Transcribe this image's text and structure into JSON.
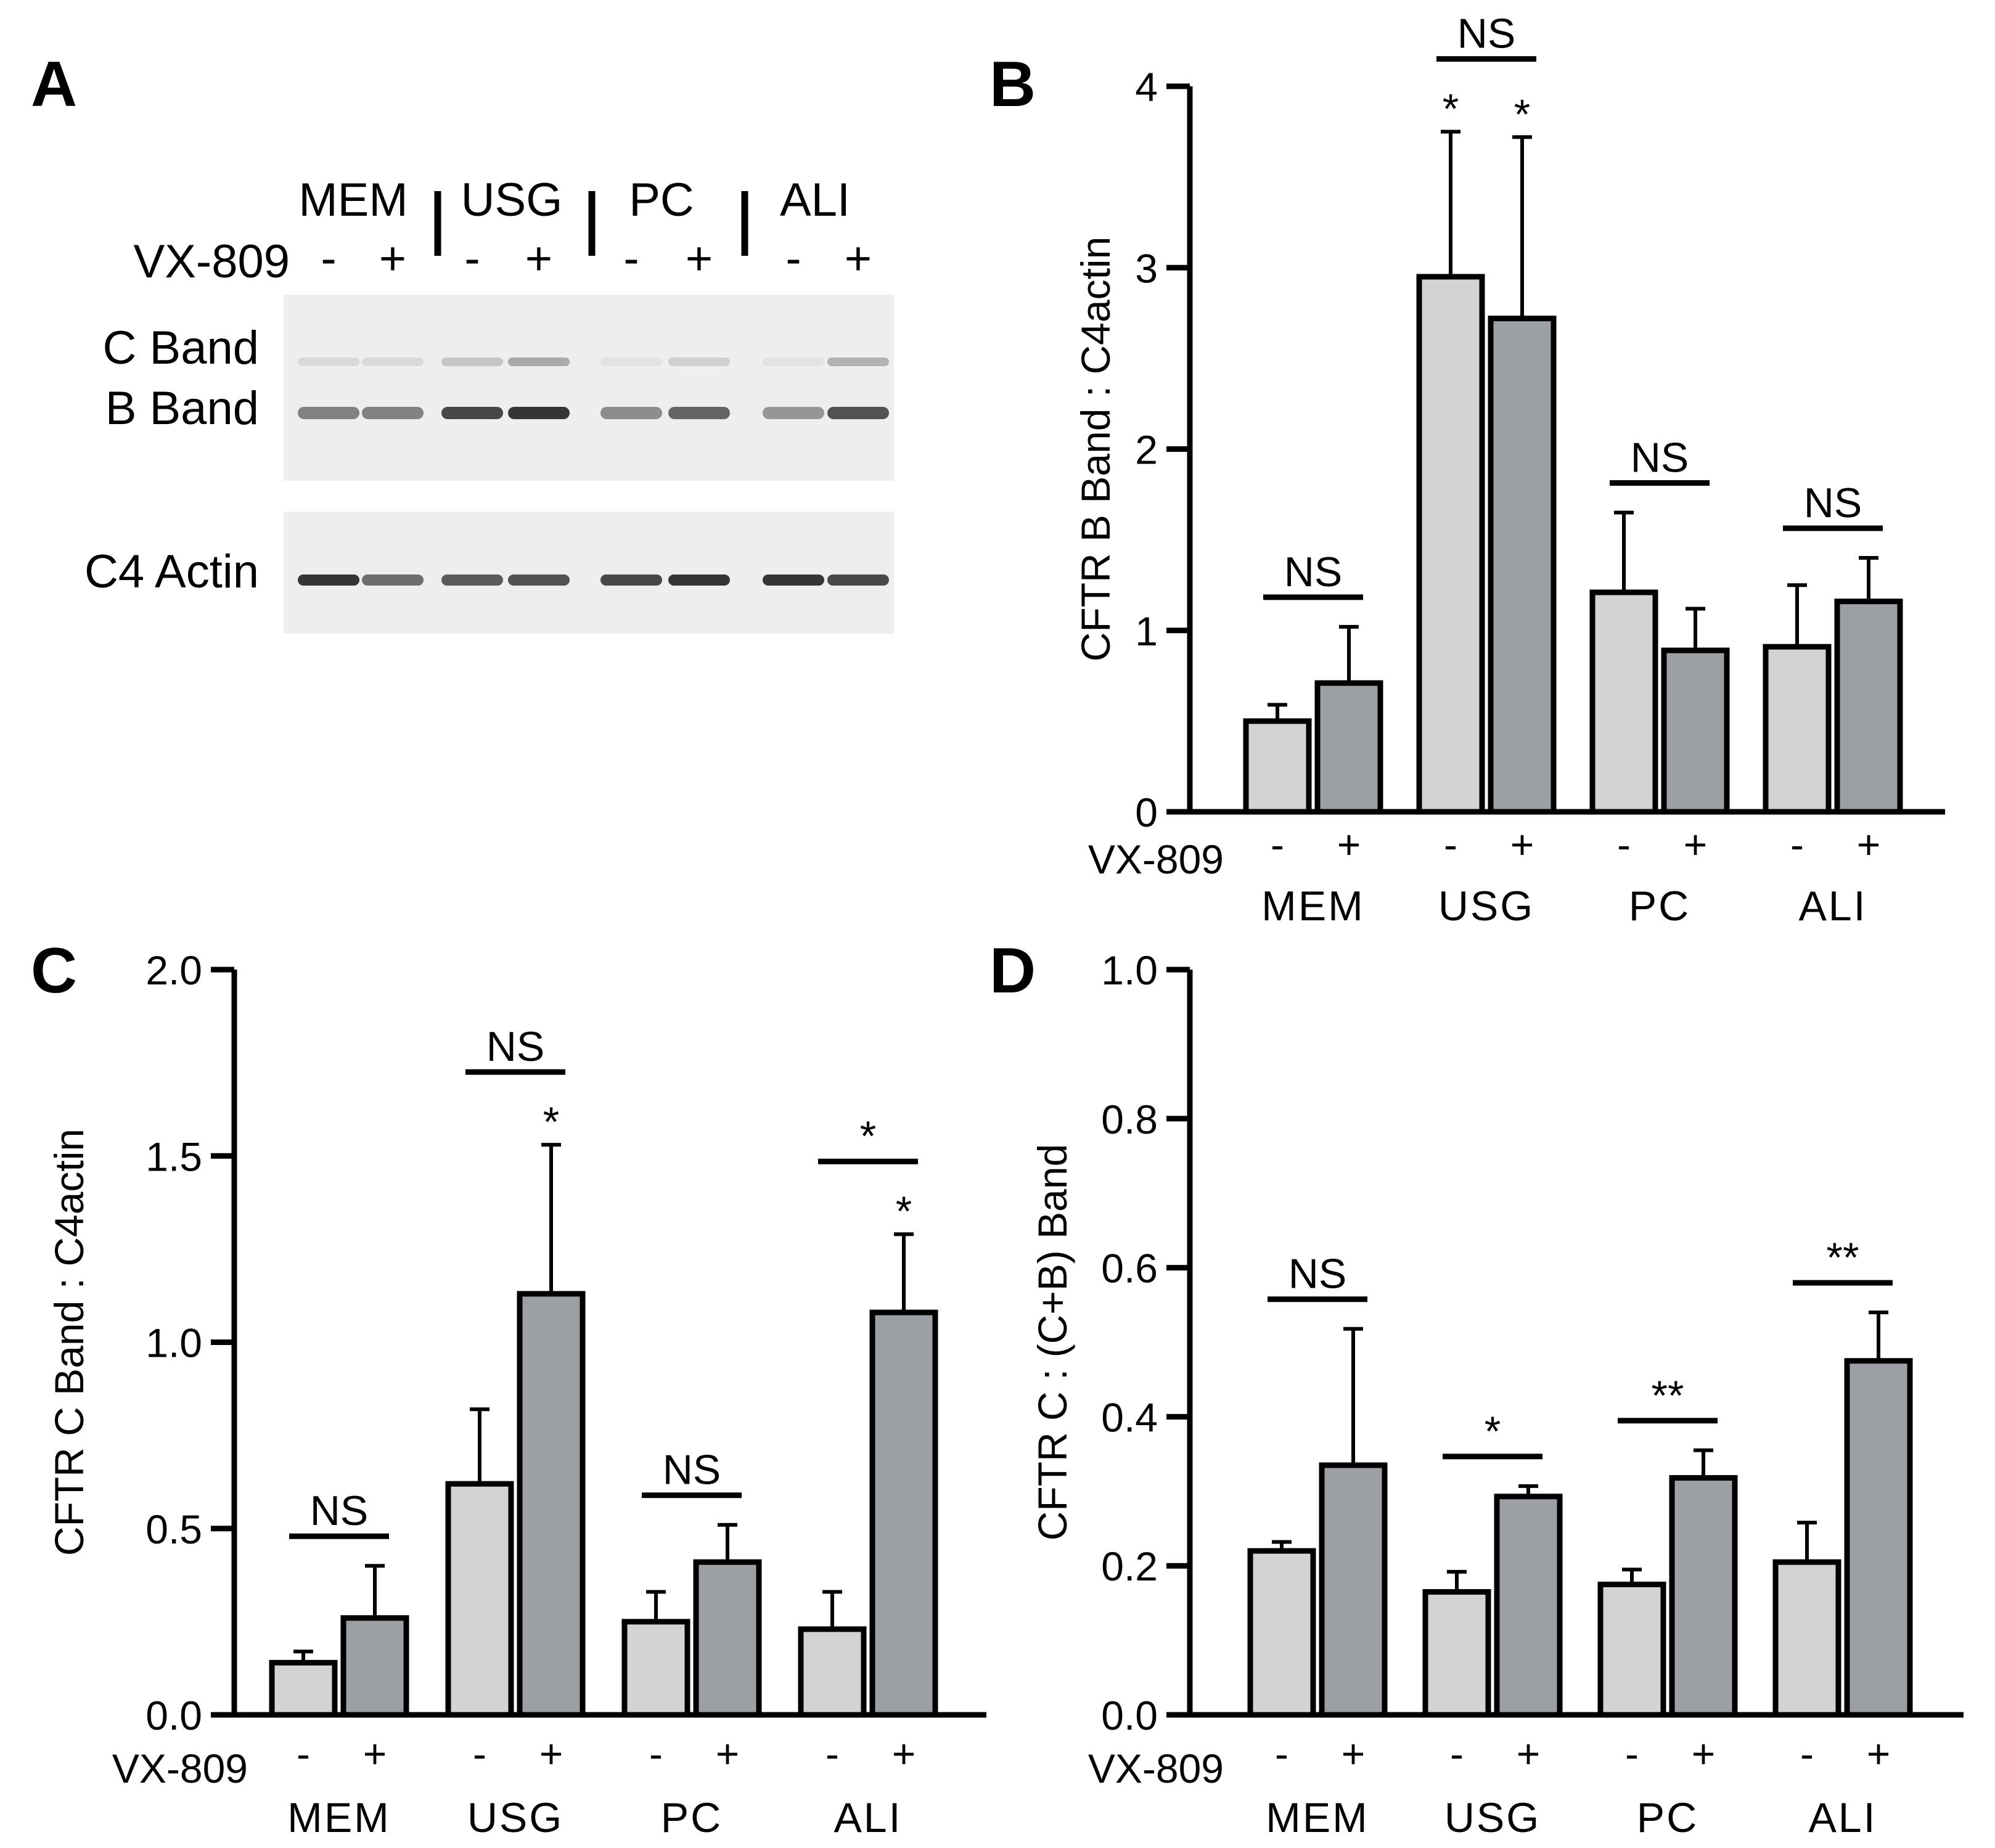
{
  "colors": {
    "control_bar": "#d3d3d3",
    "treated_bar": "#9c9fa4",
    "stroke": "#000000",
    "blot_background": "#eeeeee",
    "blot_band": "#2a2a2a"
  },
  "western_blot": {
    "panel_letter": "A",
    "groups": [
      "MEM",
      "USG",
      "PC",
      "ALI"
    ],
    "treatment_label": "VX-809",
    "lane_signs": [
      "-",
      "+",
      "-",
      "+",
      "-",
      "+",
      "-",
      "+"
    ],
    "row_labels": {
      "c_band": "C Band",
      "b_band": "B Band",
      "actin": "C4 Actin"
    },
    "b_band_intensity": [
      0.55,
      0.55,
      0.85,
      0.95,
      0.5,
      0.7,
      0.45,
      0.8
    ],
    "c_band_intensity": [
      0.1,
      0.1,
      0.2,
      0.35,
      0.05,
      0.15,
      0.05,
      0.3
    ],
    "actin_intensity": [
      0.95,
      0.65,
      0.75,
      0.8,
      0.85,
      0.95,
      0.95,
      0.85
    ]
  },
  "chart_data": [
    {
      "panel_letter": "B",
      "type": "bar",
      "ylabel": "CFTR B Band : C4actin",
      "xlabel": "",
      "treatment_label": "VX-809",
      "categories": [
        "MEM",
        "USG",
        "PC",
        "ALI"
      ],
      "sign_labels": [
        "-",
        "+"
      ],
      "ylim": [
        0,
        4
      ],
      "yticks": [
        0,
        1,
        2,
        3,
        4
      ],
      "tick_labels": [
        "0",
        "1",
        "2",
        "3",
        "4"
      ],
      "series": [
        {
          "name": "-",
          "values": [
            0.5,
            2.95,
            1.21,
            0.91
          ],
          "errors": [
            0.09,
            0.8,
            0.44,
            0.34
          ],
          "bar_stars": [
            "",
            "*",
            "",
            ""
          ]
        },
        {
          "name": "+",
          "values": [
            0.71,
            2.72,
            0.89,
            1.16
          ],
          "errors": [
            0.31,
            1.0,
            0.23,
            0.24
          ],
          "bar_stars": [
            "",
            "*",
            "",
            ""
          ]
        }
      ],
      "comparisons": [
        "NS",
        "NS",
        "NS",
        "NS"
      ]
    },
    {
      "panel_letter": "C",
      "type": "bar",
      "ylabel": "CFTR C Band : C4actin",
      "xlabel": "",
      "treatment_label": "VX-809",
      "categories": [
        "MEM",
        "USG",
        "PC",
        "ALI"
      ],
      "sign_labels": [
        "-",
        "+"
      ],
      "ylim": [
        0,
        2
      ],
      "yticks": [
        0,
        0.5,
        1,
        1.5,
        2
      ],
      "tick_labels": [
        "0.0",
        "0.5",
        "1.0",
        "1.5",
        "2.0"
      ],
      "series": [
        {
          "name": "-",
          "values": [
            0.14,
            0.62,
            0.25,
            0.23
          ],
          "errors": [
            0.03,
            0.2,
            0.08,
            0.1
          ],
          "bar_stars": [
            "",
            "",
            "",
            ""
          ]
        },
        {
          "name": "+",
          "values": [
            0.26,
            1.13,
            0.41,
            1.08
          ],
          "errors": [
            0.14,
            0.4,
            0.1,
            0.21
          ],
          "bar_stars": [
            "",
            "*",
            "",
            "*"
          ]
        }
      ],
      "comparisons": [
        "NS",
        "NS",
        "NS",
        "*"
      ]
    },
    {
      "panel_letter": "D",
      "type": "bar",
      "ylabel": "CFTR C : (C+B) Band",
      "xlabel": "",
      "treatment_label": "VX-809",
      "categories": [
        "MEM",
        "USG",
        "PC",
        "ALI"
      ],
      "sign_labels": [
        "-",
        "+"
      ],
      "ylim": [
        0,
        1
      ],
      "yticks": [
        0,
        0.2,
        0.4,
        0.6,
        0.8,
        1
      ],
      "tick_labels": [
        "0.0",
        "0.2",
        "0.4",
        "0.6",
        "0.8",
        "1.0"
      ],
      "series": [
        {
          "name": "-",
          "values": [
            0.22,
            0.165,
            0.175,
            0.205
          ],
          "errors": [
            0.012,
            0.027,
            0.02,
            0.053
          ],
          "bar_stars": [
            "",
            "",
            "",
            ""
          ]
        },
        {
          "name": "+",
          "values": [
            0.335,
            0.293,
            0.318,
            0.475
          ],
          "errors": [
            0.183,
            0.014,
            0.037,
            0.065
          ],
          "bar_stars": [
            "",
            "",
            "",
            ""
          ]
        }
      ],
      "comparisons": [
        "NS",
        "*",
        "**",
        "**"
      ]
    }
  ]
}
